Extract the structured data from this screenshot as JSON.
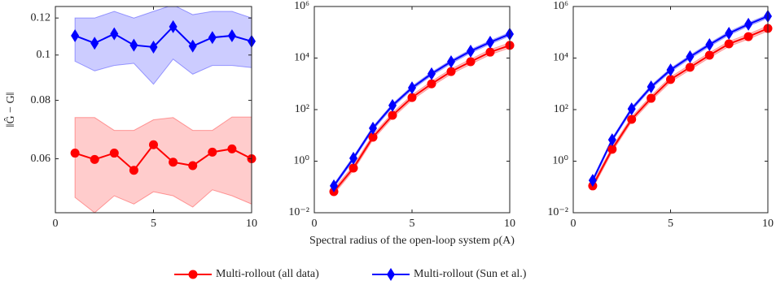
{
  "chart_data": [
    {
      "type": "line",
      "ylabel": "‖Ĝ − G‖",
      "ylog": true,
      "legend": "bottom",
      "x": [
        1,
        2,
        3,
        4,
        5,
        6,
        7,
        8,
        9,
        10
      ],
      "xlim": [
        0,
        10
      ],
      "xticks": [
        0,
        5,
        10
      ],
      "ylim": [
        0.046,
        0.127
      ],
      "yticks": [
        0.06,
        0.08,
        0.1,
        0.12
      ],
      "series": [
        {
          "name": "Multi-rollout (all data)",
          "color": "#ff0000",
          "marker": "circle",
          "values": [
            0.0617,
            0.0598,
            0.0617,
            0.0567,
            0.0643,
            0.059,
            0.058,
            0.062,
            0.063,
            0.06
          ],
          "lower": [
            0.0496,
            0.046,
            0.05,
            0.048,
            0.051,
            0.05,
            0.0473,
            0.0515,
            0.05,
            0.048
          ],
          "upper": [
            0.0735,
            0.0735,
            0.069,
            0.069,
            0.0727,
            0.0735,
            0.069,
            0.069,
            0.0737,
            0.0737
          ]
        },
        {
          "name": "Multi-rollout (Sun et al.)",
          "color": "#0000ff",
          "marker": "diamond",
          "values": [
            0.11,
            0.106,
            0.111,
            0.105,
            0.104,
            0.115,
            0.1045,
            0.109,
            0.11,
            0.107
          ],
          "lower": [
            0.097,
            0.0925,
            0.095,
            0.096,
            0.0866,
            0.098,
            0.091,
            0.095,
            0.095,
            0.094
          ],
          "upper": [
            0.12,
            0.12,
            0.124,
            0.12,
            0.124,
            0.128,
            0.122,
            0.124,
            0.124,
            0.12
          ]
        }
      ]
    },
    {
      "type": "line",
      "ylog": true,
      "xlabel": "Spectral radius of the open-loop system ρ(A)",
      "x": [
        1,
        2,
        3,
        4,
        5,
        6,
        7,
        8,
        9,
        10
      ],
      "xlim": [
        0,
        10
      ],
      "xticks": [
        0,
        5,
        10
      ],
      "ylim": [
        0.01,
        1000000
      ],
      "yticks": [
        {
          "value": 0.01,
          "label": "10⁻²"
        },
        {
          "value": 1,
          "label": "10⁰"
        },
        {
          "value": 100,
          "label": "10²"
        },
        {
          "value": 10000,
          "label": "10⁴"
        },
        {
          "value": 1000000,
          "label": "10⁶"
        }
      ],
      "series": [
        {
          "color": "#ff0000",
          "marker": "circle",
          "values": [
            0.066,
            0.54,
            8.5,
            60,
            295,
            1000,
            3000,
            7200,
            17000,
            31000
          ],
          "lower": [
            0.053,
            0.43,
            6.8,
            48,
            236,
            800,
            2400,
            5760,
            13600,
            24800
          ],
          "upper": [
            0.083,
            0.68,
            10.6,
            75,
            369,
            1250,
            3750,
            9000,
            21250,
            38750
          ]
        },
        {
          "color": "#0000ff",
          "marker": "diamond",
          "values": [
            0.11,
            1.3,
            19,
            145,
            700,
            2450,
            7200,
            18600,
            41000,
            85000
          ],
          "lower": [
            0.094,
            1.1,
            16,
            123,
            595,
            2080,
            6120,
            15800,
            34850,
            72250
          ],
          "upper": [
            0.127,
            1.5,
            21.9,
            167,
            805,
            2820,
            8280,
            21400,
            47150,
            97750
          ]
        }
      ]
    },
    {
      "type": "line",
      "ylog": true,
      "x": [
        1,
        2,
        3,
        4,
        5,
        6,
        7,
        8,
        9,
        10
      ],
      "xlim": [
        0,
        10
      ],
      "xticks": [
        0,
        5,
        10
      ],
      "ylim": [
        0.01,
        1000000
      ],
      "yticks": [
        {
          "value": 0.01,
          "label": "10⁻²"
        },
        {
          "value": 1,
          "label": "10⁰"
        },
        {
          "value": 100,
          "label": "10²"
        },
        {
          "value": 10000,
          "label": "10⁴"
        },
        {
          "value": 1000000,
          "label": "10⁶"
        }
      ],
      "series": [
        {
          "color": "#ff0000",
          "marker": "circle",
          "values": [
            0.11,
            2.9,
            42,
            275,
            1480,
            4370,
            12900,
            35500,
            68000,
            141000
          ],
          "lower": [
            0.088,
            2.3,
            34,
            220,
            1180,
            3500,
            10300,
            28400,
            54400,
            112800
          ],
          "upper": [
            0.138,
            3.6,
            52,
            344,
            1850,
            5460,
            16100,
            44400,
            85000,
            176000
          ]
        },
        {
          "color": "#0000ff",
          "marker": "diamond",
          "values": [
            0.18,
            6.8,
            107,
            760,
            3470,
            11200,
            33000,
            91000,
            204000,
            417000
          ],
          "lower": [
            0.153,
            5.8,
            91,
            646,
            2950,
            9520,
            28000,
            77400,
            173000,
            354000
          ],
          "upper": [
            0.207,
            7.8,
            123,
            874,
            3990,
            12900,
            38000,
            105000,
            235000,
            480000
          ]
        }
      ]
    }
  ]
}
